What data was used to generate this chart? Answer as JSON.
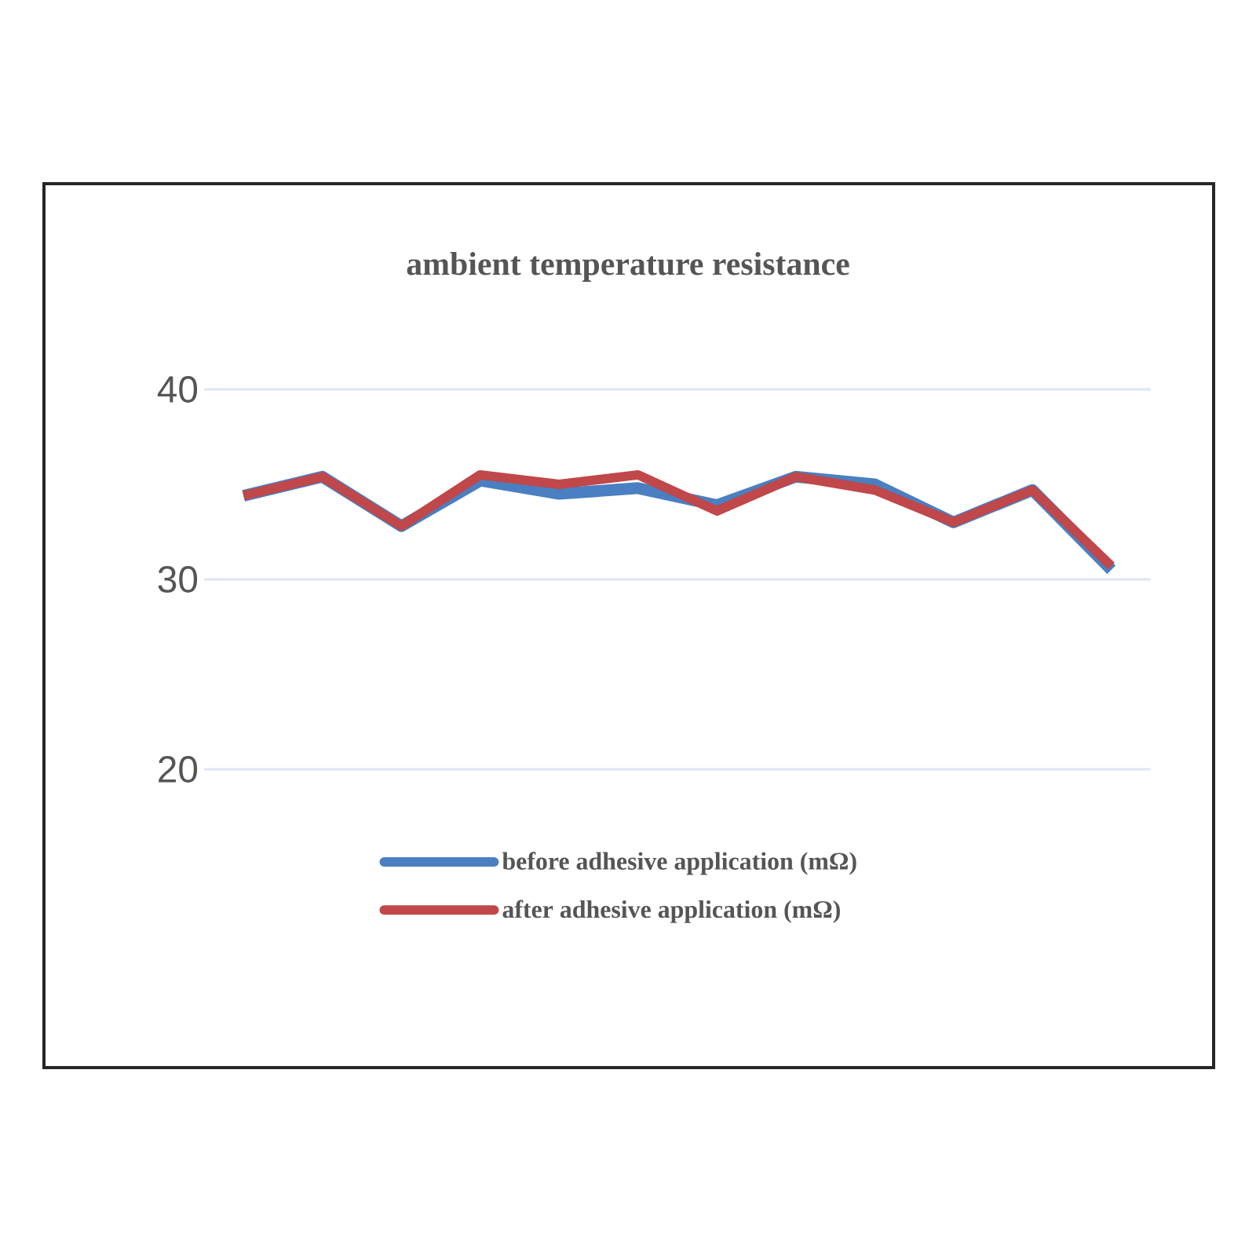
{
  "chart_data": {
    "type": "line",
    "title": "ambient temperature resistance",
    "categories": [
      null,
      null,
      null,
      null,
      null,
      null,
      null,
      null,
      null,
      null,
      null,
      null
    ],
    "series": [
      {
        "name": "before adhesive application (mΩ)",
        "color": "#4a7fc1",
        "values": [
          34.4,
          35.4,
          32.8,
          35.2,
          34.5,
          34.8,
          33.9,
          35.4,
          35.0,
          33.0,
          34.7,
          30.5
        ]
      },
      {
        "name": "after adhesive application (mΩ)",
        "color": "#c0474a",
        "values": [
          34.4,
          35.4,
          32.8,
          35.5,
          35.0,
          35.5,
          33.6,
          35.4,
          34.7,
          33.0,
          34.7,
          30.7
        ]
      }
    ],
    "ylim": [
      20,
      40
    ],
    "yticks": [
      20,
      30,
      40
    ],
    "grid": "y",
    "legend": "bottom",
    "marker": "none",
    "line_style": "solid",
    "tick_labels": "y"
  }
}
